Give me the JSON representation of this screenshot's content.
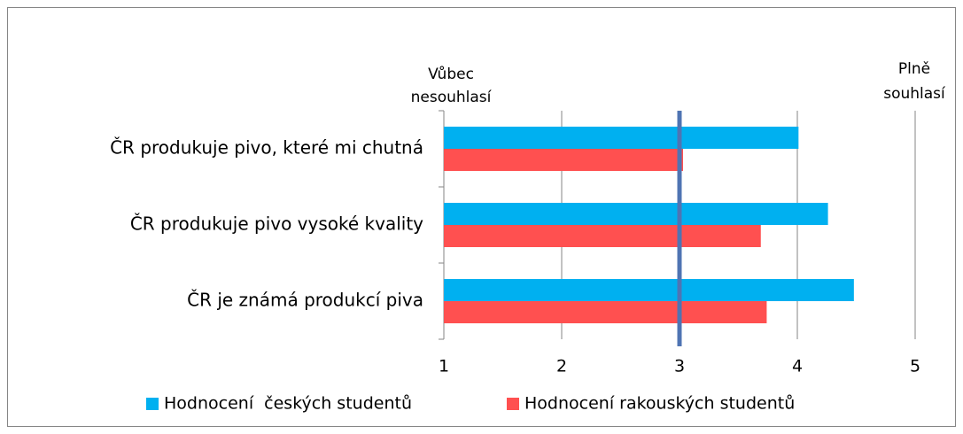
{
  "chart_data": {
    "type": "bar",
    "orientation": "horizontal",
    "categories": [
      "ČR produkuje pivo, které mi chutná",
      "ČR produkuje pivo vysoké kvality",
      "ČR je známá produkcí piva"
    ],
    "series": [
      {
        "name": "Hodnocení  českých studentů",
        "color": "#00b0f0",
        "values": [
          4.01,
          4.26,
          4.48
        ]
      },
      {
        "name": "Hodnocení rakouských studentů",
        "color": "#ff5050",
        "values": [
          3.03,
          3.69,
          3.74
        ]
      }
    ],
    "xlim": [
      1,
      5
    ],
    "xticks": [
      1,
      2,
      3,
      4,
      5
    ],
    "grid": true,
    "reference_line": {
      "value": 3,
      "color": "#4f74b3"
    },
    "annotations": [
      [
        "Vůbec",
        "nesouhlasí"
      ],
      [
        "Plně",
        "souhlasí"
      ]
    ],
    "legend": "bottom"
  }
}
